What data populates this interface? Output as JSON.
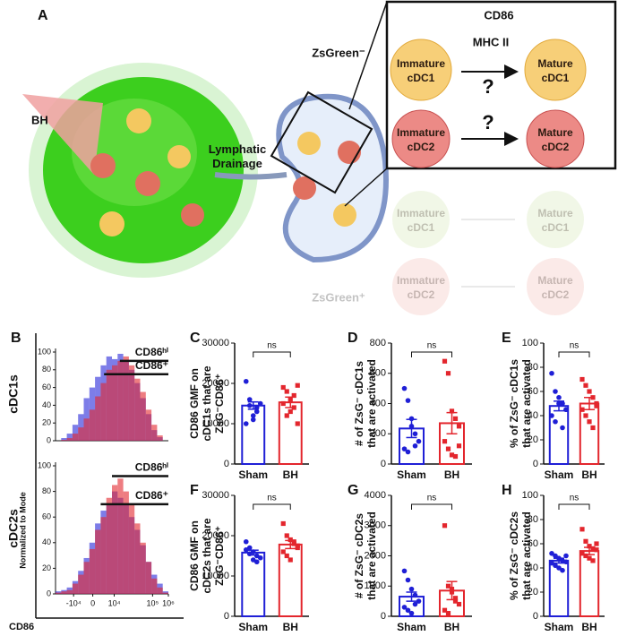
{
  "diagram": {
    "label": "A",
    "bh": "BH",
    "lymphatic": [
      "Lymphatic",
      "Drainage"
    ],
    "zsgreen_neg": "ZsGreen⁻",
    "zsgreen_pos": "ZsGreen⁺",
    "cd86": "CD86",
    "mhc": "MHC II",
    "question": "?",
    "cells": {
      "imm1": [
        "Immature",
        "cDC1"
      ],
      "mat1": [
        "Mature",
        "cDC1"
      ],
      "imm2": [
        "Immature",
        "cDC2"
      ],
      "mat2": [
        "Mature",
        "cDC2"
      ]
    }
  },
  "panel_b": {
    "label": "B",
    "ylabel": "Normalized to Mode",
    "xlabel": "CD86"
  },
  "chart_data": [
    {
      "type": "histogram",
      "row_label": "cDC1s",
      "xlim": [
        0,
        100
      ],
      "ylim": [
        0,
        100
      ],
      "yticks": [
        0,
        20,
        40,
        60,
        80,
        100
      ],
      "bins": [
        0,
        5,
        10,
        15,
        20,
        25,
        30,
        35,
        40,
        45,
        50,
        55,
        60,
        65,
        70,
        75,
        80,
        85,
        90,
        95,
        100
      ],
      "series": [
        {
          "color": "#2626d9",
          "values": [
            0,
            3,
            8,
            18,
            30,
            48,
            60,
            72,
            85,
            95,
            92,
            98,
            90,
            80,
            65,
            48,
            30,
            12,
            4,
            0
          ]
        },
        {
          "color": "#e3262d",
          "values": [
            0,
            1,
            3,
            8,
            15,
            25,
            35,
            50,
            65,
            80,
            85,
            90,
            95,
            85,
            70,
            55,
            35,
            18,
            6,
            0
          ]
        }
      ],
      "gates": [
        {
          "label": "CD86ʰⁱ",
          "x": [
            57,
            100
          ],
          "y": 90
        },
        {
          "label": "CD86⁺",
          "x": [
            43,
            100
          ],
          "y": 75
        }
      ]
    },
    {
      "type": "histogram",
      "row_label": "cDC2s",
      "xlim": [
        0,
        100
      ],
      "ylim": [
        0,
        100
      ],
      "yticks": [
        0,
        20,
        40,
        60,
        80,
        100
      ],
      "xticks": [
        {
          "value": 16,
          "label": "-10⁴"
        },
        {
          "value": 33,
          "label": "0"
        },
        {
          "value": 52,
          "label": "10⁴"
        },
        {
          "value": 86,
          "label": "10⁵"
        },
        {
          "value": 100,
          "label": "10⁶"
        }
      ],
      "bins": [
        0,
        5,
        10,
        15,
        20,
        25,
        30,
        35,
        40,
        45,
        50,
        55,
        60,
        65,
        70,
        75,
        80,
        85,
        90,
        95,
        100
      ],
      "series": [
        {
          "color": "#2626d9",
          "values": [
            2,
            3,
            5,
            10,
            18,
            28,
            40,
            55,
            65,
            70,
            80,
            75,
            70,
            60,
            50,
            38,
            25,
            15,
            8,
            2
          ]
        },
        {
          "color": "#e3262d",
          "values": [
            1,
            2,
            3,
            8,
            15,
            25,
            35,
            50,
            60,
            75,
            85,
            90,
            80,
            70,
            55,
            40,
            25,
            12,
            5,
            1
          ]
        }
      ],
      "gates": [
        {
          "label": "CD86ʰⁱ",
          "x": [
            50,
            100
          ],
          "y": 92
        },
        {
          "label": "CD86⁺",
          "x": [
            40,
            100
          ],
          "y": 70
        }
      ]
    },
    {
      "type": "bar",
      "label": "C",
      "ylabel": [
        "CD86 GMF on",
        "cDC1s that are",
        "ZsG⁻CD86⁺"
      ],
      "categories": [
        "Sham",
        "BH"
      ],
      "colors": [
        "#1f1fd6",
        "#e3262d"
      ],
      "ylim": [
        0,
        30000
      ],
      "yticks": [
        0,
        10000,
        20000,
        30000
      ],
      "values": [
        14500,
        15300
      ],
      "errors": [
        900,
        1300
      ],
      "points": [
        [
          20500,
          14500,
          12000,
          13000,
          15000,
          10000,
          16000,
          11000,
          14000
        ],
        [
          19000,
          12000,
          16000,
          17000,
          10000,
          15000,
          18000,
          13000,
          14000,
          19500
        ]
      ],
      "annotation": "ns"
    },
    {
      "type": "bar",
      "label": "D",
      "ylabel": [
        "# of ZsG⁻ cDC1s",
        "that are activated"
      ],
      "categories": [
        "Sham",
        "BH"
      ],
      "colors": [
        "#1f1fd6",
        "#e3262d"
      ],
      "ylim": [
        0,
        800
      ],
      "yticks": [
        0,
        200,
        400,
        600,
        800
      ],
      "values": [
        235,
        270
      ],
      "errors": [
        60,
        70
      ],
      "points": [
        [
          500,
          420,
          300,
          200,
          150,
          100,
          80,
          250,
          120
        ],
        [
          680,
          600,
          350,
          300,
          250,
          150,
          100,
          60,
          50,
          120
        ]
      ],
      "annotation": "ns"
    },
    {
      "type": "bar",
      "label": "E",
      "ylabel": [
        "% of ZsG⁻ cDC1s",
        "that are activated"
      ],
      "categories": [
        "Sham",
        "BH"
      ],
      "colors": [
        "#1f1fd6",
        "#e3262d"
      ],
      "ylim": [
        0,
        100
      ],
      "yticks": [
        0,
        20,
        40,
        60,
        80,
        100
      ],
      "values": [
        48,
        50
      ],
      "errors": [
        4,
        5
      ],
      "points": [
        [
          75,
          60,
          55,
          50,
          45,
          40,
          35,
          50,
          30,
          45
        ],
        [
          70,
          65,
          60,
          55,
          50,
          45,
          40,
          35,
          30,
          48
        ]
      ],
      "annotation": "ns"
    },
    {
      "type": "bar",
      "label": "F",
      "ylabel": [
        "CD86 GMF on",
        "cDC2s that are",
        "ZsG⁻CD86⁺"
      ],
      "categories": [
        "Sham",
        "BH"
      ],
      "colors": [
        "#1f1fd6",
        "#e3262d"
      ],
      "ylim": [
        0,
        30000
      ],
      "yticks": [
        0,
        10000,
        20000,
        30000
      ],
      "values": [
        15800,
        17800
      ],
      "errors": [
        600,
        1000
      ],
      "points": [
        [
          18500,
          17000,
          16000,
          15000,
          14500,
          16500,
          15500,
          14000,
          13500
        ],
        [
          23000,
          20000,
          19000,
          18000,
          17500,
          16000,
          15000,
          14000,
          18500,
          17000
        ]
      ],
      "annotation": "ns"
    },
    {
      "type": "bar",
      "label": "G",
      "ylabel": [
        "# of ZsG⁻ cDC2s",
        "that are activated"
      ],
      "categories": [
        "Sham",
        "BH"
      ],
      "colors": [
        "#1f1fd6",
        "#e3262d"
      ],
      "ylim": [
        0,
        4000
      ],
      "yticks": [
        0,
        1000,
        2000,
        3000,
        4000
      ],
      "values": [
        650,
        850
      ],
      "errors": [
        150,
        300
      ],
      "points": [
        [
          1500,
          1200,
          900,
          700,
          500,
          300,
          200,
          100,
          400
        ],
        [
          3000,
          1000,
          800,
          600,
          400,
          200,
          100,
          900,
          500
        ]
      ],
      "annotation": "ns"
    },
    {
      "type": "bar",
      "label": "H",
      "ylabel": [
        "% of ZsG⁻ cDC2s",
        "that are activated"
      ],
      "categories": [
        "Sham",
        "BH"
      ],
      "colors": [
        "#1f1fd6",
        "#e3262d"
      ],
      "ylim": [
        0,
        100
      ],
      "yticks": [
        0,
        20,
        40,
        60,
        80,
        100
      ],
      "values": [
        46,
        54
      ],
      "errors": [
        2,
        3
      ],
      "points": [
        [
          52,
          50,
          48,
          46,
          45,
          44,
          42,
          40,
          38,
          50
        ],
        [
          72,
          62,
          58,
          56,
          55,
          52,
          50,
          48,
          46,
          60
        ]
      ],
      "annotation": "ns"
    }
  ]
}
